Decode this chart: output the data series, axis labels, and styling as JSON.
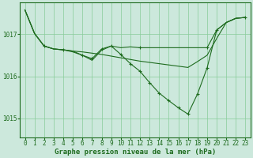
{
  "background_color": "#cce8dc",
  "grid_color": "#88cc99",
  "line_color": "#1e6b1e",
  "xlabel": "Graphe pression niveau de la mer (hPa)",
  "xlabel_fontsize": 6.5,
  "tick_fontsize": 5.5,
  "yticks": [
    1015,
    1016,
    1017
  ],
  "xtick_labels": [
    "0",
    "1",
    "2",
    "3",
    "4",
    "5",
    "6",
    "7",
    "8",
    "9",
    "10",
    "11",
    "12",
    "13",
    "14",
    "15",
    "16",
    "17",
    "18",
    "19",
    "20",
    "21",
    "22",
    "23"
  ],
  "ylim": [
    1014.55,
    1017.75
  ],
  "xlim": [
    -0.5,
    23.5
  ],
  "s1": [
    1017.58,
    1017.02,
    1016.72,
    1016.65,
    1016.63,
    1016.6,
    1016.58,
    1016.55,
    1016.52,
    1016.48,
    1016.44,
    1016.4,
    1016.36,
    1016.33,
    1016.3,
    1016.27,
    1016.24,
    1016.21,
    1016.35,
    1016.5,
    1016.9,
    1017.28,
    1017.38,
    1017.4
  ],
  "s2": [
    1017.58,
    1017.02,
    1016.72,
    1016.65,
    1016.63,
    1016.6,
    1016.5,
    1016.42,
    1016.65,
    1016.72,
    1016.68,
    1016.7,
    1016.68,
    1016.68,
    1016.68,
    1016.68,
    1016.68,
    1016.68,
    1016.68,
    1016.68,
    1017.1,
    1017.28,
    1017.38,
    1017.4
  ],
  "s3": [
    1017.58,
    1017.02,
    1016.72,
    1016.65,
    1016.63,
    1016.58,
    1016.5,
    1016.38,
    1016.62,
    1016.72,
    1016.52,
    1016.3,
    1016.12,
    1015.85,
    1015.6,
    1015.42,
    1015.25,
    1015.1,
    1015.58,
    1016.2,
    1017.1,
    1017.28,
    1017.38,
    1017.4
  ]
}
